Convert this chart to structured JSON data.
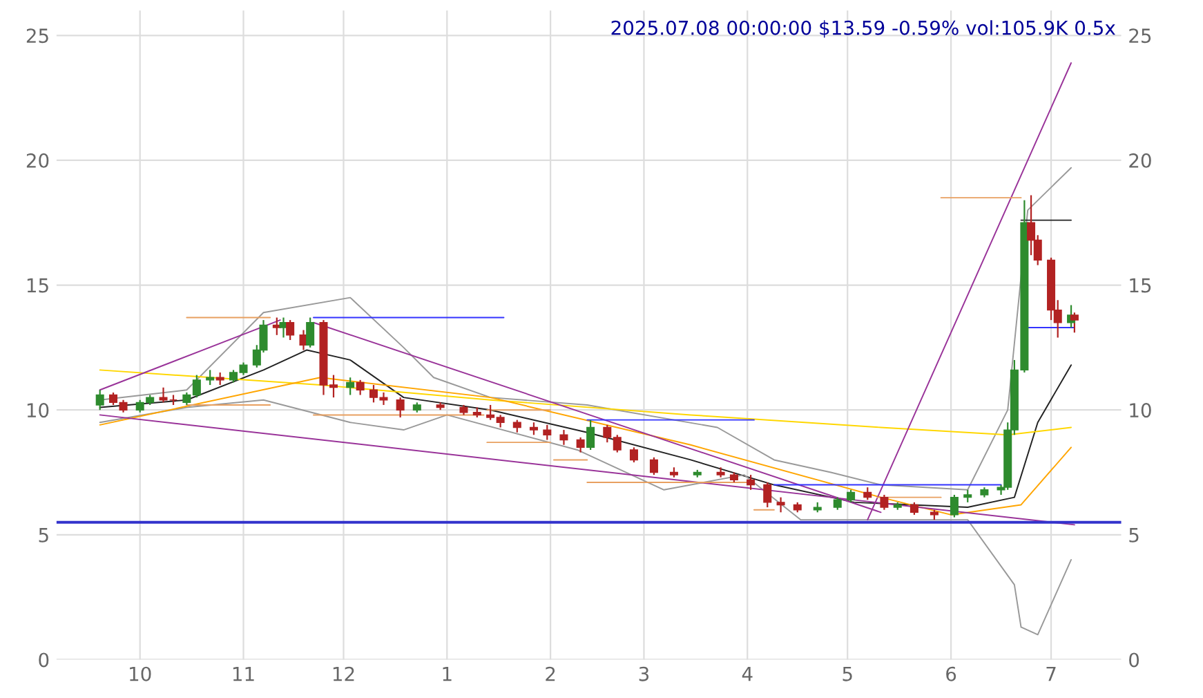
{
  "chart_data": {
    "type": "candlestick",
    "title": "2025.07.08 00:00:00 $13.59 -0.59% vol:105.9K 0.5x",
    "colors": [
      "#2e8b2e",
      "#b22222",
      "#b22222",
      "#2e8b2e",
      "#2e8b2e",
      "#b22222",
      "#b22222",
      "#2e8b2e",
      "#2e8b2e",
      "#2e8b2e",
      "#b22222",
      "#2e8b2e",
      "#2e8b2e",
      "#2e8b2e",
      "#2e8b2e",
      "#b22222",
      "#2e8b2e",
      "#b22222",
      "#b22222",
      "#2e8b2e",
      "#b22222",
      "#b22222",
      "#2e8b2e",
      "#b22222",
      "#b22222",
      "#b22222",
      "#b22222",
      "#2e8b2e",
      "#b22222",
      "#b22222",
      "#b22222",
      "#b22222",
      "#b22222",
      "#b22222",
      "#b22222",
      "#b22222",
      "#b22222",
      "#b22222",
      "#2e8b2e",
      "#b22222",
      "#b22222",
      "#b22222",
      "#b22222",
      "#b22222",
      "#2e8b2e",
      "#b22222",
      "#b22222",
      "#b22222",
      "#b22222",
      "#b22222",
      "#b22222",
      "#2e8b2e",
      "#2e8b2e",
      "#2e8b2e",
      "#b22222",
      "#b22222",
      "#2e8b2e",
      "#b22222",
      "#b22222",
      "#2e8b2e",
      "#2e8b2e",
      "#2e8b2e",
      "#2e8b2e",
      "#2e8b2e",
      "#2e8b2e",
      "#2e8b2e",
      "#b22222",
      "#b22222",
      "#b22222",
      "#b22222",
      "#2e8b2e",
      "#b22222"
    ],
    "x": [
      "2024-09-19",
      "2024-09-23",
      "2024-09-26",
      "2024-10-01",
      "2024-10-04",
      "2024-10-08",
      "2024-10-11",
      "2024-10-15",
      "2024-10-18",
      "2024-10-22",
      "2024-10-25",
      "2024-10-29",
      "2024-11-01",
      "2024-11-05",
      "2024-11-07",
      "2024-11-11",
      "2024-11-13",
      "2024-11-15",
      "2024-11-19",
      "2024-11-21",
      "2024-11-25",
      "2024-11-28",
      "2024-12-03",
      "2024-12-06",
      "2024-12-10",
      "2024-12-13",
      "2024-12-18",
      "2024-12-23",
      "2024-12-30",
      "2025-01-06",
      "2025-01-10",
      "2025-01-14",
      "2025-01-17",
      "2025-01-22",
      "2025-01-27",
      "2025-01-31",
      "2025-02-05",
      "2025-02-10",
      "2025-02-13",
      "2025-02-18",
      "2025-02-21",
      "2025-02-26",
      "2025-03-04",
      "2025-03-10",
      "2025-03-17",
      "2025-03-24",
      "2025-03-28",
      "2025-04-02",
      "2025-04-07",
      "2025-04-11",
      "2025-04-16",
      "2025-04-22",
      "2025-04-28",
      "2025-05-02",
      "2025-05-07",
      "2025-05-12",
      "2025-05-16",
      "2025-05-21",
      "2025-05-27",
      "2025-06-02",
      "2025-06-06",
      "2025-06-11",
      "2025-06-16",
      "2025-06-18",
      "2025-06-20",
      "2025-06-23",
      "2025-06-25",
      "2025-06-27",
      "2025-07-01",
      "2025-07-03",
      "2025-07-07",
      "2025-07-08"
    ],
    "ohlc": [
      [
        10.2,
        10.8,
        10.0,
        10.6
      ],
      [
        10.6,
        10.7,
        10.2,
        10.3
      ],
      [
        10.3,
        10.4,
        9.9,
        10.0
      ],
      [
        10.0,
        10.4,
        9.9,
        10.3
      ],
      [
        10.3,
        10.6,
        10.2,
        10.5
      ],
      [
        10.5,
        10.9,
        10.3,
        10.4
      ],
      [
        10.4,
        10.6,
        10.2,
        10.4
      ],
      [
        10.3,
        10.7,
        10.2,
        10.6
      ],
      [
        10.6,
        11.4,
        10.5,
        11.2
      ],
      [
        11.2,
        11.6,
        11.0,
        11.3
      ],
      [
        11.3,
        11.5,
        11.0,
        11.2
      ],
      [
        11.2,
        11.6,
        11.1,
        11.5
      ],
      [
        11.5,
        11.9,
        11.4,
        11.8
      ],
      [
        11.8,
        12.6,
        11.7,
        12.4
      ],
      [
        12.4,
        13.6,
        12.3,
        13.4
      ],
      [
        13.4,
        13.7,
        13.0,
        13.3
      ],
      [
        13.3,
        13.7,
        12.9,
        13.5
      ],
      [
        13.5,
        13.6,
        12.8,
        13.0
      ],
      [
        13.0,
        13.2,
        12.4,
        12.6
      ],
      [
        12.6,
        13.7,
        12.5,
        13.5
      ],
      [
        13.5,
        13.6,
        10.6,
        11.0
      ],
      [
        11.0,
        11.4,
        10.5,
        10.9
      ],
      [
        10.9,
        11.3,
        10.6,
        11.1
      ],
      [
        11.1,
        11.2,
        10.6,
        10.8
      ],
      [
        10.8,
        11.0,
        10.3,
        10.5
      ],
      [
        10.5,
        10.7,
        10.2,
        10.4
      ],
      [
        10.4,
        10.5,
        9.7,
        10.0
      ],
      [
        10.0,
        10.3,
        9.9,
        10.2
      ],
      [
        10.2,
        10.3,
        10.0,
        10.1
      ],
      [
        10.1,
        10.2,
        9.8,
        9.9
      ],
      [
        9.9,
        10.1,
        9.7,
        9.8
      ],
      [
        9.8,
        10.2,
        9.6,
        9.7
      ],
      [
        9.7,
        9.8,
        9.3,
        9.5
      ],
      [
        9.5,
        9.6,
        9.1,
        9.3
      ],
      [
        9.3,
        9.5,
        9.0,
        9.2
      ],
      [
        9.2,
        9.4,
        8.8,
        9.0
      ],
      [
        9.0,
        9.2,
        8.6,
        8.8
      ],
      [
        8.8,
        8.9,
        8.3,
        8.5
      ],
      [
        8.5,
        9.6,
        8.4,
        9.3
      ],
      [
        9.3,
        9.4,
        8.7,
        8.9
      ],
      [
        8.9,
        9.0,
        8.3,
        8.4
      ],
      [
        8.4,
        8.5,
        7.9,
        8.0
      ],
      [
        8.0,
        8.1,
        7.4,
        7.5
      ],
      [
        7.5,
        7.7,
        7.3,
        7.4
      ],
      [
        7.4,
        7.6,
        7.3,
        7.5
      ],
      [
        7.5,
        7.7,
        7.3,
        7.4
      ],
      [
        7.4,
        7.5,
        7.1,
        7.2
      ],
      [
        7.2,
        7.4,
        6.8,
        7.0
      ],
      [
        7.0,
        7.1,
        6.1,
        6.3
      ],
      [
        6.3,
        6.5,
        5.9,
        6.2
      ],
      [
        6.2,
        6.3,
        5.9,
        6.0
      ],
      [
        6.0,
        6.3,
        5.9,
        6.1
      ],
      [
        6.1,
        6.5,
        6.0,
        6.4
      ],
      [
        6.4,
        6.8,
        6.3,
        6.7
      ],
      [
        6.7,
        6.9,
        6.4,
        6.5
      ],
      [
        6.5,
        6.6,
        6.0,
        6.1
      ],
      [
        6.1,
        6.3,
        6.0,
        6.2
      ],
      [
        6.2,
        6.3,
        5.8,
        5.9
      ],
      [
        5.9,
        6.0,
        5.6,
        5.8
      ],
      [
        5.8,
        6.6,
        5.7,
        6.5
      ],
      [
        6.5,
        6.8,
        6.3,
        6.6
      ],
      [
        6.6,
        6.9,
        6.5,
        6.8
      ],
      [
        6.8,
        7.0,
        6.6,
        6.9
      ],
      [
        6.9,
        9.5,
        6.8,
        9.2
      ],
      [
        9.2,
        12.0,
        9.0,
        11.6
      ],
      [
        11.6,
        18.4,
        11.5,
        17.5
      ],
      [
        17.5,
        18.6,
        16.2,
        16.8
      ],
      [
        16.8,
        17.0,
        15.8,
        16.0
      ],
      [
        16.0,
        16.1,
        13.6,
        14.0
      ],
      [
        14.0,
        14.4,
        12.9,
        13.5
      ],
      [
        13.5,
        14.2,
        13.3,
        13.8
      ],
      [
        13.8,
        13.9,
        13.1,
        13.6
      ]
    ],
    "series": [
      {
        "type": "line",
        "color": "#222222",
        "x": [
          "2024-09-19",
          "2024-10-15",
          "2024-11-07",
          "2024-11-20",
          "2024-12-03",
          "2024-12-19",
          "2025-01-14",
          "2025-02-12",
          "2025-03-15",
          "2025-04-09",
          "2025-05-03",
          "2025-06-06",
          "2025-06-20",
          "2025-06-27",
          "2025-07-07"
        ],
        "values": [
          10.1,
          10.4,
          11.6,
          12.4,
          12.0,
          10.5,
          10.0,
          9.1,
          8.0,
          7.0,
          6.3,
          6.1,
          6.5,
          9.5,
          11.8
        ]
      },
      {
        "type": "line",
        "color": "#999999",
        "x": [
          "2024-09-19",
          "2024-10-15",
          "2024-11-07",
          "2024-12-03",
          "2024-12-19",
          "2024-12-28",
          "2025-01-14",
          "2025-02-12",
          "2025-03-23",
          "2025-04-09",
          "2025-04-26",
          "2025-05-11",
          "2025-06-06",
          "2025-06-18",
          "2025-06-24",
          "2025-07-07"
        ],
        "values": [
          10.4,
          10.8,
          13.9,
          14.5,
          12.5,
          11.3,
          10.5,
          10.2,
          9.3,
          8.0,
          7.5,
          7.0,
          6.8,
          10.0,
          18.0,
          19.7
        ]
      },
      {
        "type": "line",
        "color": "#999999",
        "x": [
          "2024-09-19",
          "2024-10-15",
          "2024-11-07",
          "2024-12-03",
          "2024-12-19",
          "2025-01-01",
          "2025-02-09",
          "2025-03-07",
          "2025-03-31",
          "2025-04-17",
          "2025-05-11",
          "2025-06-06",
          "2025-06-20",
          "2025-06-22",
          "2025-06-27",
          "2025-07-07"
        ],
        "values": [
          9.5,
          10.1,
          10.4,
          9.5,
          9.2,
          9.8,
          8.4,
          6.8,
          7.4,
          5.6,
          5.6,
          5.6,
          3.0,
          1.3,
          1.0,
          4.0
        ]
      },
      {
        "type": "line",
        "color": "#ffd700",
        "x": [
          "2024-09-19",
          "2024-11-24",
          "2025-01-14",
          "2025-03-15",
          "2025-05-11",
          "2025-06-18",
          "2025-07-07"
        ],
        "values": [
          11.6,
          11.0,
          10.4,
          9.8,
          9.3,
          9.0,
          9.3
        ]
      },
      {
        "type": "line",
        "color": "#ffa500",
        "x": [
          "2024-09-19",
          "2024-11-24",
          "2025-01-14",
          "2025-03-15",
          "2025-05-11",
          "2025-06-01",
          "2025-06-22",
          "2025-07-07"
        ],
        "values": [
          9.4,
          11.3,
          10.5,
          8.6,
          6.5,
          5.8,
          6.2,
          8.5
        ]
      },
      {
        "type": "line",
        "color": "#993399",
        "x": [
          "2024-09-19",
          "2024-11-12"
        ],
        "values": [
          10.8,
          13.6
        ]
      },
      {
        "type": "line",
        "color": "#993399",
        "x": [
          "2024-11-22",
          "2025-05-11"
        ],
        "values": [
          13.5,
          5.9
        ]
      },
      {
        "type": "line",
        "color": "#993399",
        "x": [
          "2024-09-19",
          "2025-07-08"
        ],
        "values": [
          9.8,
          5.4
        ]
      },
      {
        "type": "line",
        "color": "#993399",
        "x": [
          "2025-05-07",
          "2025-07-07"
        ],
        "values": [
          5.6,
          23.9
        ]
      },
      {
        "type": "line",
        "color": "#3333ff",
        "x": [
          "2024-11-22",
          "2025-01-18"
        ],
        "values": [
          13.7,
          13.7
        ]
      },
      {
        "type": "line",
        "color": "#3333ff",
        "x": [
          "2025-02-12",
          "2025-04-03"
        ],
        "values": [
          9.6,
          9.6
        ]
      },
      {
        "type": "line",
        "color": "#3333ff",
        "x": [
          "2025-04-09",
          "2025-06-16"
        ],
        "values": [
          7.0,
          7.0
        ]
      },
      {
        "type": "line",
        "color": "#3333ff",
        "x": [
          "2025-06-24",
          "2025-07-08"
        ],
        "values": [
          13.3,
          13.3
        ]
      },
      {
        "type": "line",
        "color": "#222222",
        "x": [
          "2025-06-22",
          "2025-07-07"
        ],
        "values": [
          17.6,
          17.6
        ]
      },
      {
        "type": "line",
        "color": "#e8a060",
        "x": [
          "2024-10-15",
          "2024-11-09"
        ],
        "values": [
          13.7,
          13.7
        ]
      },
      {
        "type": "line",
        "color": "#e8a060",
        "x": [
          "2024-10-15",
          "2024-11-09"
        ],
        "values": [
          10.2,
          10.2
        ]
      },
      {
        "type": "line",
        "color": "#e8a060",
        "x": [
          "2024-11-22",
          "2025-01-12"
        ],
        "values": [
          9.8,
          9.8
        ]
      },
      {
        "type": "line",
        "color": "#e8a060",
        "x": [
          "2025-01-13",
          "2025-02-01"
        ],
        "values": [
          10.0,
          10.0
        ]
      },
      {
        "type": "line",
        "color": "#e8a060",
        "x": [
          "2025-01-13",
          "2025-02-01"
        ],
        "values": [
          8.7,
          8.7
        ]
      },
      {
        "type": "line",
        "color": "#e8a060",
        "x": [
          "2025-02-02",
          "2025-02-12"
        ],
        "values": [
          8.0,
          8.0
        ]
      },
      {
        "type": "line",
        "color": "#e8a060",
        "x": [
          "2025-02-12",
          "2025-04-03"
        ],
        "values": [
          7.1,
          7.1
        ]
      },
      {
        "type": "line",
        "color": "#e8a060",
        "x": [
          "2025-04-03",
          "2025-04-09"
        ],
        "values": [
          6.0,
          6.0
        ]
      },
      {
        "type": "line",
        "color": "#e8a060",
        "x": [
          "2025-05-10",
          "2025-05-29"
        ],
        "values": [
          6.5,
          6.5
        ]
      },
      {
        "type": "line",
        "color": "#e8a060",
        "x": [
          "2025-05-29",
          "2025-06-22"
        ],
        "values": [
          18.5,
          18.5
        ]
      }
    ],
    "ref_lines": [
      {
        "axis": "y",
        "value": 5.5,
        "color": "#3333cc"
      }
    ],
    "xlim": [
      "2024-09-06",
      "2025-07-22"
    ],
    "xticks": [
      {
        "value": "2024-10-01",
        "label": "10"
      },
      {
        "value": "2024-11-01",
        "label": "11"
      },
      {
        "value": "2024-12-01",
        "label": "12"
      },
      {
        "value": "2025-01-01",
        "label": "1"
      },
      {
        "value": "2025-02-01",
        "label": "2"
      },
      {
        "value": "2025-03-01",
        "label": "3"
      },
      {
        "value": "2025-04-01",
        "label": "4"
      },
      {
        "value": "2025-05-01",
        "label": "5"
      },
      {
        "value": "2025-06-01",
        "label": "6"
      },
      {
        "value": "2025-07-01",
        "label": "7"
      }
    ],
    "ylim": [
      0,
      26
    ],
    "yticks": [
      0,
      5,
      10,
      15,
      20,
      25
    ],
    "y2lim": [
      0,
      26
    ],
    "y2ticks": [
      0,
      5,
      10,
      15,
      20,
      25
    ],
    "grid": true
  }
}
